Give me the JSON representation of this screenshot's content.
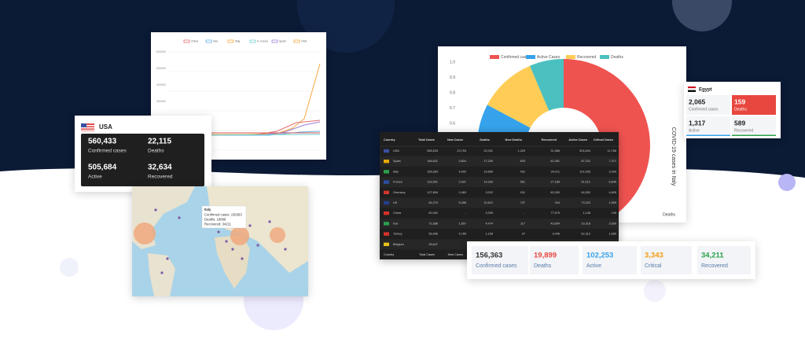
{
  "line_chart": {
    "legend": [
      "China",
      "Iran",
      "Italy",
      "S. Korea",
      "Spain",
      "USA"
    ],
    "yticks": [
      "600000",
      "500000",
      "400000",
      "300000",
      "200000",
      "100000"
    ]
  },
  "usa_card": {
    "country": "USA",
    "stats": [
      {
        "value": "560,433",
        "label": "Confirmed cases"
      },
      {
        "value": "22,115",
        "label": "Deaths"
      },
      {
        "value": "505,684",
        "label": "Active"
      },
      {
        "value": "32,634",
        "label": "Recovered"
      }
    ]
  },
  "map": {
    "tooltip": [
      "Italy",
      "Confirmed cases: 156363",
      "Deaths: 19899",
      "Recovered: 34211"
    ]
  },
  "donut_chart": {
    "legend": [
      "Confirmed cases",
      "Active Cases",
      "Recovered",
      "Deaths"
    ],
    "yticks": [
      "1.0",
      "0.9",
      "0.8",
      "0.7",
      "0.6"
    ],
    "side_label": "COVID-19 cases in Italy",
    "x_label": "Deaths"
  },
  "egypt_card": {
    "country": "Egypt",
    "stats": [
      {
        "value": "2,065",
        "label": "Confirmed cases"
      },
      {
        "value": "159",
        "label": "Deaths"
      },
      {
        "value": "1,317",
        "label": "Active"
      },
      {
        "value": "589",
        "label": "Recovered"
      }
    ]
  },
  "table": {
    "headers": [
      "Country",
      "Total Cases",
      "New Cases",
      "Deaths",
      "New Deaths",
      "Recovered",
      "Active Cases",
      "Critical Cases"
    ],
    "rows": [
      [
        "USA",
        "558,633",
        "23,753",
        "22,031",
        "1,429",
        "31,586",
        "504,844",
        "11,766"
      ],
      [
        "Spain",
        "166,831",
        "3,804",
        "17,209",
        "603",
        "62,391",
        "87,231",
        "7,371"
      ],
      [
        "Italy",
        "156,363",
        "4,092",
        "19,899",
        "431",
        "34,211",
        "102,253",
        "3,343"
      ],
      [
        "France",
        "132,591",
        "2,937",
        "14,393",
        "561",
        "27,186",
        "91,012",
        "6,845"
      ],
      [
        "Germany",
        "127,854",
        "2,463",
        "3,022",
        "151",
        "60,300",
        "64,532",
        "4,895"
      ],
      [
        "UK",
        "84,279",
        "5,288",
        "10,612",
        "737",
        "344",
        "73,323",
        "1,559"
      ],
      [
        "China",
        "82,052",
        "-",
        "3,339",
        "-",
        "77,575",
        "1,138",
        "139"
      ],
      [
        "Iran",
        "71,686",
        "1,657",
        "4,474",
        "117",
        "43,894",
        "23,318",
        "3,930"
      ],
      [
        "Turkey",
        "56,956",
        "4,789",
        "1,198",
        "97",
        "3,446",
        "52,312",
        "1,665"
      ],
      [
        "Belgium",
        "28,647"
      ]
    ],
    "footer": [
      "Country",
      "Total Cases",
      "New Cases"
    ]
  },
  "stats_bar": {
    "items": [
      {
        "value": "156,363",
        "label": "Confirmed cases"
      },
      {
        "value": "19,899",
        "label": "Deaths"
      },
      {
        "value": "102,253",
        "label": "Active"
      },
      {
        "value": "3,343",
        "label": "Critical"
      },
      {
        "value": "34,211",
        "label": "Recovered"
      }
    ]
  }
}
